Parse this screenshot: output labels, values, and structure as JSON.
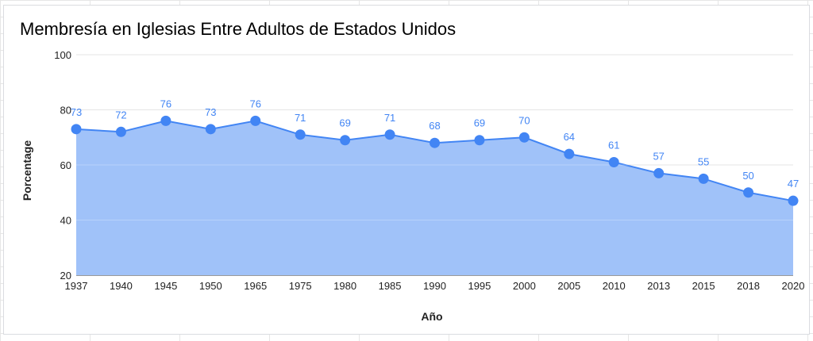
{
  "chart_data": {
    "type": "area",
    "title": "Membresía en Iglesias Entre Adultos de Estados Unidos",
    "xlabel": "Año",
    "ylabel": "Porcentage",
    "ylim": [
      20,
      100
    ],
    "yticks": [
      20,
      40,
      60,
      80,
      100
    ],
    "categories": [
      "1937",
      "1940",
      "1945",
      "1950",
      "1965",
      "1975",
      "1980",
      "1985",
      "1990",
      "1995",
      "2000",
      "2005",
      "2010",
      "2013",
      "2015",
      "2018",
      "2020"
    ],
    "values": [
      73,
      72,
      76,
      73,
      76,
      71,
      69,
      71,
      68,
      69,
      70,
      64,
      61,
      57,
      55,
      50,
      47
    ],
    "grid": true,
    "legend": "none",
    "colors": {
      "line": "#4285f4",
      "fill": "#a0c2f9",
      "label": "#4285f4"
    }
  }
}
